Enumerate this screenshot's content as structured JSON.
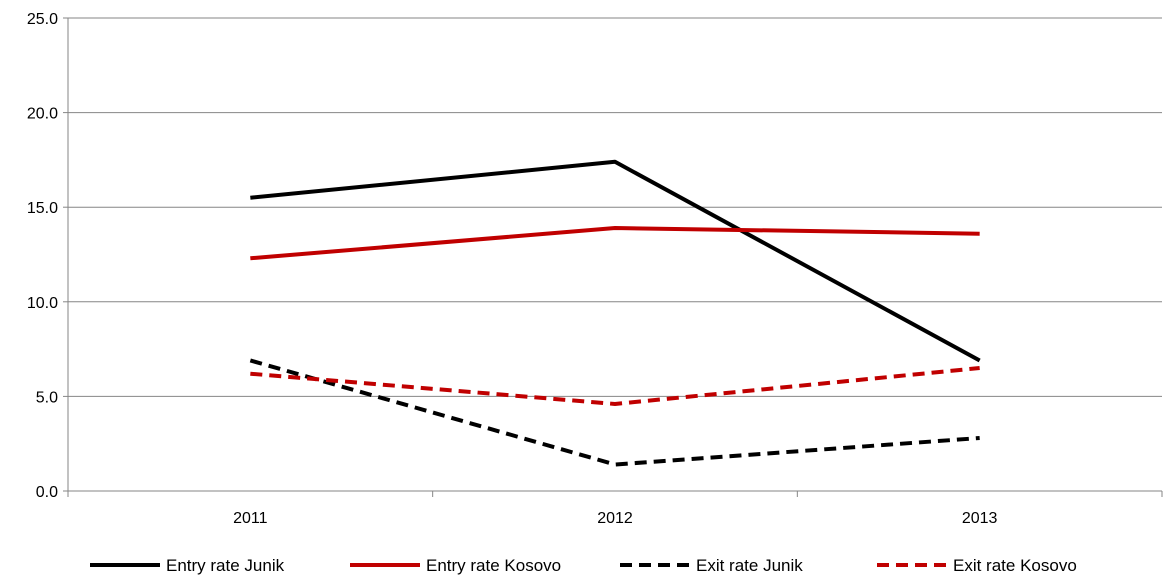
{
  "chart_data": {
    "type": "line",
    "title": "",
    "xlabel": "",
    "ylabel": "",
    "categories": [
      "2011",
      "2012",
      "2013"
    ],
    "ylim": [
      0,
      25
    ],
    "yticks": [
      "0.0",
      "5.0",
      "10.0",
      "15.0",
      "20.0",
      "25.0"
    ],
    "grid": true,
    "legend_position": "bottom",
    "series": [
      {
        "name": "Entry rate Junik",
        "values": [
          15.5,
          17.4,
          6.9
        ],
        "color": "#000000",
        "dash": "solid"
      },
      {
        "name": "Entry rate Kosovo",
        "values": [
          12.3,
          13.9,
          13.6
        ],
        "color": "#c00000",
        "dash": "dashed-none"
      },
      {
        "name": "Exit rate Junik",
        "values": [
          6.9,
          1.4,
          2.8
        ],
        "color": "#000000",
        "dash": "dashed"
      },
      {
        "name": "Exit rate Kosovo",
        "values": [
          6.2,
          4.6,
          6.5
        ],
        "color": "#c00000",
        "dash": "dashed"
      }
    ]
  }
}
